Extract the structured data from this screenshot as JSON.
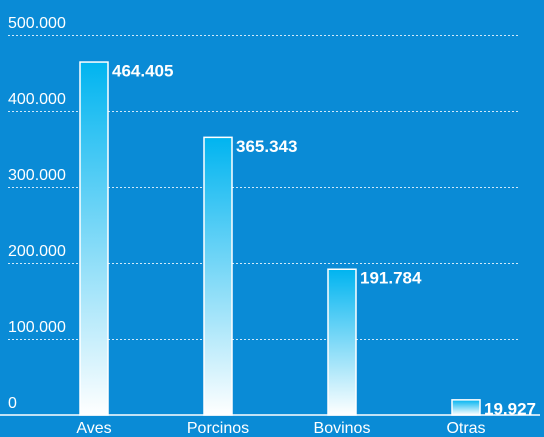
{
  "chart_data": {
    "type": "bar",
    "categories": [
      "Aves",
      "Porcinos",
      "Bovinos",
      "Otras"
    ],
    "values": [
      464405,
      365343,
      191784,
      19927
    ],
    "value_labels": [
      "464.405",
      "365.343",
      "191.784",
      "19.927"
    ],
    "ylim": [
      0,
      500000
    ],
    "yticks": [
      {
        "value": 0,
        "label": "0"
      },
      {
        "value": 100000,
        "label": "100.000"
      },
      {
        "value": 200000,
        "label": "200.000"
      },
      {
        "value": 300000,
        "label": "300.000"
      },
      {
        "value": 400000,
        "label": "400.000"
      },
      {
        "value": 500000,
        "label": "500.000"
      }
    ],
    "grid": true
  }
}
